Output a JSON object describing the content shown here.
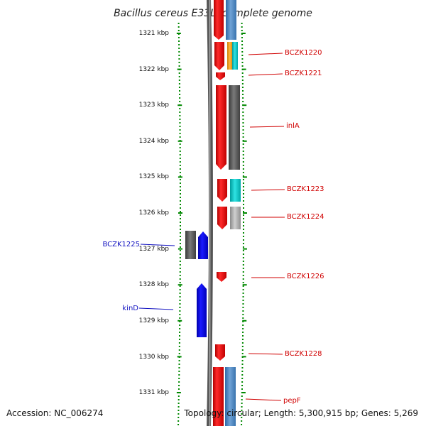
{
  "title": "Bacillus cereus E33L, complete genome",
  "ruler_labels": [
    "1321 kbp",
    "1322 kbp",
    "1323 kbp",
    "1324 kbp",
    "1325 kbp",
    "1326 kbp",
    "1327 kbp",
    "1328 kbp",
    "1329 kbp",
    "1330 kbp",
    "1331 kbp"
  ],
  "genes_forward": [
    {
      "label": "BCZK1220",
      "color": "#d00000"
    },
    {
      "label": "BCZK1221",
      "color": "#d00000"
    },
    {
      "label": "inlA",
      "color": "#d00000"
    },
    {
      "label": "BCZK1223",
      "color": "#d00000"
    },
    {
      "label": "BCZK1224",
      "color": "#d00000"
    },
    {
      "label": "BCZK1226",
      "color": "#d00000"
    },
    {
      "label": "BCZK1228",
      "color": "#d00000"
    },
    {
      "label": "pepF",
      "color": "#d00000"
    }
  ],
  "genes_reverse": [
    {
      "label": "BCZK1225",
      "color": "#1010c0"
    },
    {
      "label": "kinD",
      "color": "#1010c0"
    }
  ],
  "footer": {
    "accession": "Accession: NC_006274",
    "topology": "Topology: circular; Length: 5,300,915 bp; Genes: 5,269"
  },
  "colors": {
    "cds_forward": "#ee0000",
    "cds_reverse": "#0000ee",
    "cog_blue": "#4f86c0",
    "cog_orange": "#f5a21a",
    "cog_cyan": "#13c6c6",
    "cog_darkgray": "#5c5c5c",
    "cog_lightgray": "#a8a8a8",
    "backbone": "#808080",
    "tick": "#008800"
  }
}
